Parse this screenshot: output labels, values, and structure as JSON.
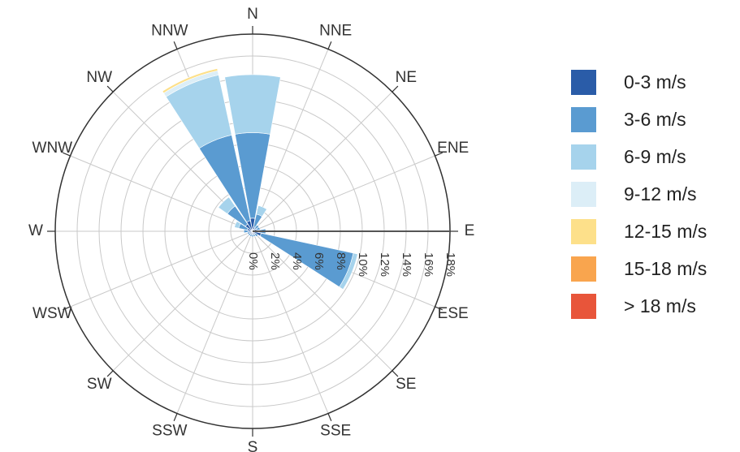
{
  "chart_data": {
    "type": "windrose",
    "directions": [
      "N",
      "NNE",
      "NE",
      "ENE",
      "E",
      "ESE",
      "SE",
      "SSE",
      "S",
      "SSW",
      "SW",
      "WSW",
      "W",
      "WNW",
      "NW",
      "NNW"
    ],
    "radial_unit": "%",
    "radial_max": 18,
    "radial_ticks": [
      "0%",
      "2%",
      "4%",
      "6%",
      "8%",
      "10%",
      "12%",
      "14%",
      "16%",
      "18%"
    ],
    "legend_placement": "right",
    "series": [
      {
        "name": "0-3 m/s",
        "color": "#2a5ca8",
        "values": [
          1.2,
          0.4,
          0.3,
          0.4,
          0.6,
          0.8,
          0.3,
          0.3,
          0.3,
          0.3,
          0.3,
          0.3,
          0.4,
          0.5,
          0.8,
          1.0
        ]
      },
      {
        "name": "3-6 m/s",
        "color": "#5a9bd1",
        "values": [
          7.8,
          1.2,
          0.4,
          0.3,
          0.6,
          8.6,
          0.3,
          0.2,
          0.2,
          0.2,
          0.2,
          0.2,
          0.4,
          0.8,
          2.0,
          8.0
        ]
      },
      {
        "name": "6-9 m/s",
        "color": "#a6d3ec",
        "values": [
          5.3,
          0.8,
          0,
          0,
          0,
          0.4,
          0,
          0,
          0,
          0,
          0,
          0,
          0,
          0.4,
          1.0,
          5.6
        ]
      },
      {
        "name": "9-12 m/s",
        "color": "#dceef7",
        "values": [
          0,
          0,
          0,
          0,
          0,
          0,
          0,
          0,
          0,
          0,
          0,
          0,
          0,
          0,
          0,
          0.4
        ]
      },
      {
        "name": "12-15 m/s",
        "color": "#fde08a",
        "values": [
          0,
          0,
          0,
          0,
          0,
          0,
          0,
          0,
          0,
          0,
          0,
          0,
          0,
          0,
          0,
          0.2
        ]
      },
      {
        "name": "15-18 m/s",
        "color": "#f9a54e",
        "values": [
          0,
          0,
          0,
          0,
          0,
          0,
          0,
          0,
          0,
          0,
          0,
          0,
          0,
          0,
          0,
          0
        ]
      },
      {
        "name": "> 18 m/s",
        "color": "#e8553a",
        "values": [
          0,
          0,
          0,
          0,
          0,
          0,
          0,
          0,
          0,
          0,
          0,
          0,
          0,
          0,
          0,
          0
        ]
      }
    ]
  }
}
